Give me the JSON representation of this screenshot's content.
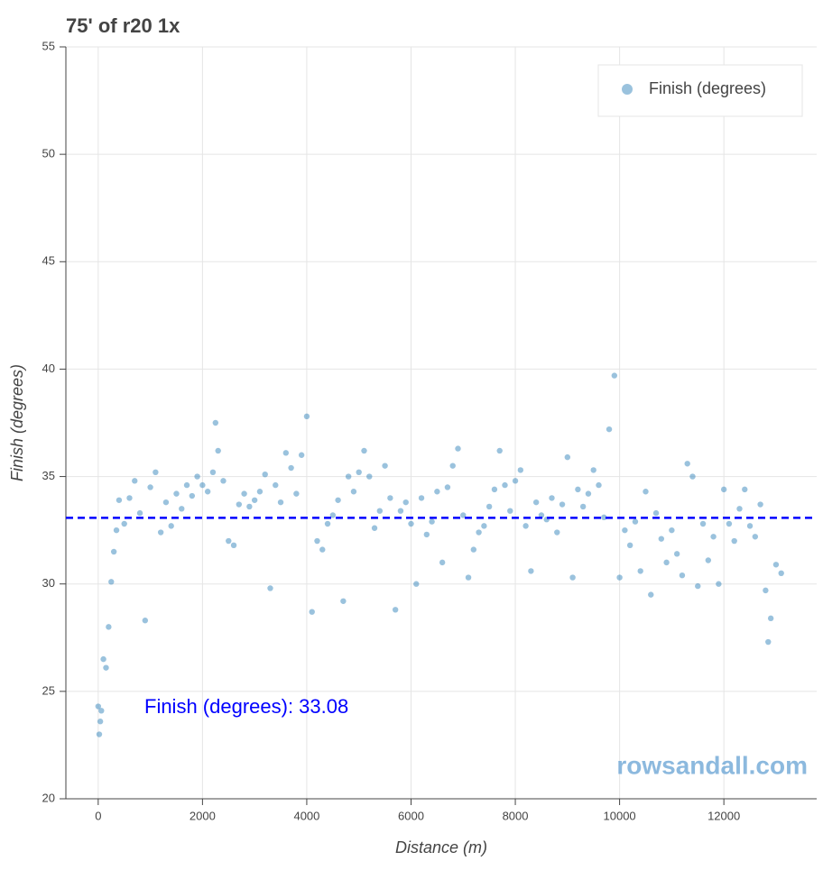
{
  "chart_data": {
    "type": "scatter",
    "title": "75' of r20 1x",
    "x_label": "Distance (m)",
    "y_label": "Finish (degrees)",
    "series": [
      {
        "name": "Finish (degrees)",
        "color": "#1f77b4",
        "x": [
          0,
          20,
          40,
          60,
          100,
          150,
          200,
          250,
          300,
          350,
          400,
          500,
          600,
          700,
          800,
          900,
          1000,
          1100,
          1200,
          1300,
          1400,
          1500,
          1600,
          1700,
          1800,
          1900,
          2000,
          2100,
          2200,
          2250,
          2300,
          2400,
          2500,
          2600,
          2700,
          2800,
          2900,
          3000,
          3100,
          3200,
          3300,
          3400,
          3500,
          3600,
          3700,
          3800,
          3900,
          4000,
          4100,
          4200,
          4300,
          4400,
          4500,
          4600,
          4700,
          4800,
          4900,
          5000,
          5100,
          5200,
          5300,
          5400,
          5500,
          5600,
          5700,
          5800,
          5900,
          6000,
          6100,
          6200,
          6300,
          6400,
          6500,
          6600,
          6700,
          6800,
          6900,
          7000,
          7100,
          7200,
          7300,
          7400,
          7500,
          7600,
          7700,
          7800,
          7900,
          8000,
          8100,
          8200,
          8300,
          8400,
          8500,
          8600,
          8700,
          8800,
          8900,
          9000,
          9100,
          9200,
          9300,
          9400,
          9500,
          9600,
          9700,
          9800,
          9900,
          10000,
          10100,
          10200,
          10300,
          10400,
          10500,
          10600,
          10700,
          10800,
          10900,
          11000,
          11100,
          11200,
          11300,
          11400,
          11500,
          11600,
          11700,
          11800,
          11900,
          12000,
          12100,
          12200,
          12300,
          12400,
          12500,
          12600,
          12700,
          12800,
          12850,
          12900,
          13000,
          13100
        ],
        "values": [
          24.3,
          23,
          23.6,
          24.1,
          26.5,
          26.1,
          28,
          30.1,
          31.5,
          32.5,
          33.9,
          32.8,
          34,
          34.8,
          33.3,
          28.3,
          34.5,
          35.2,
          32.4,
          33.8,
          32.7,
          34.2,
          33.5,
          34.6,
          34.1,
          35.0,
          34.6,
          34.3,
          35.2,
          37.5,
          36.2,
          34.8,
          32,
          31.8,
          33.7,
          34.2,
          33.6,
          33.9,
          34.3,
          35.1,
          29.8,
          34.6,
          33.8,
          36.1,
          35.4,
          34.2,
          36.0,
          37.8,
          28.7,
          32.0,
          31.6,
          32.8,
          33.2,
          33.9,
          29.2,
          35.0,
          34.3,
          35.2,
          36.2,
          35.0,
          32.6,
          33.4,
          35.5,
          34.0,
          28.8,
          33.4,
          33.8,
          32.8,
          30.0,
          34.0,
          32.3,
          32.9,
          34.3,
          31.0,
          34.5,
          35.5,
          36.3,
          33.2,
          30.3,
          31.6,
          32.4,
          32.7,
          33.6,
          34.4,
          36.2,
          34.6,
          33.4,
          34.8,
          35.3,
          32.7,
          30.6,
          33.8,
          33.2,
          33.0,
          34.0,
          32.4,
          33.7,
          35.9,
          30.3,
          34.4,
          33.6,
          34.2,
          35.3,
          34.6,
          33.1,
          37.2,
          39.7,
          30.3,
          32.5,
          31.8,
          32.9,
          30.6,
          34.3,
          29.5,
          33.3,
          32.1,
          31.0,
          32.5,
          31.4,
          30.4,
          35.6,
          35.0,
          29.9,
          32.8,
          31.1,
          32.2,
          30.0,
          34.4,
          32.8,
          32.0,
          33.5,
          34.4,
          32.7,
          32.2,
          33.7,
          29.7,
          27.3,
          28.4,
          30.9,
          30.5
        ]
      }
    ],
    "mean": 33.08,
    "mean_color": "#0000ff",
    "mean_label": "Finish (degrees): 33.08",
    "xlim": [
      -620,
      13780
    ],
    "xticks": [
      0,
      2000,
      4000,
      6000,
      8000,
      10000,
      12000
    ],
    "ylim": [
      20,
      55
    ],
    "yticks": [
      20,
      25,
      30,
      35,
      40,
      45,
      50,
      55
    ],
    "grid": true,
    "legend": "top-right",
    "watermark": "rowsandall.com"
  }
}
